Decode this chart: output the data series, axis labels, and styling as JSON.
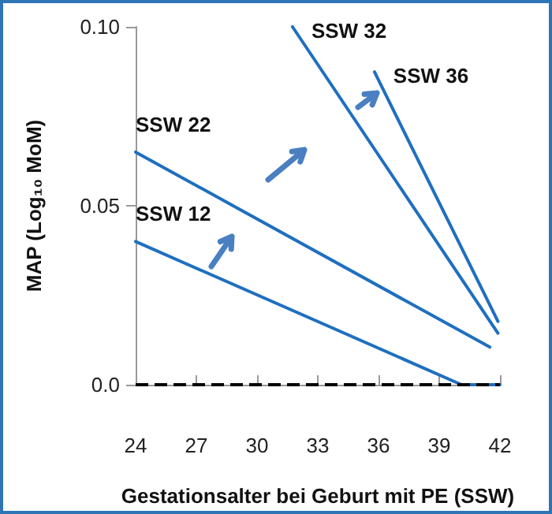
{
  "chart_data": {
    "type": "line",
    "xlabel": "Gestationsalter bei Geburt mit PE (SSW)",
    "ylabel": "MAP (Log₁₀ MoM)",
    "xlim": [
      24,
      42
    ],
    "xticks": [
      24,
      27,
      30,
      33,
      36,
      39,
      42
    ],
    "ylim": [
      0,
      0.1
    ],
    "yticks": [
      {
        "value": 0,
        "label": "0.0"
      },
      {
        "value": 0.05,
        "label": "0.05"
      },
      {
        "value": 0.1,
        "label": "0.10"
      }
    ],
    "grid": false,
    "legend": false,
    "marker": "none",
    "line_style": "solid",
    "ref_lines": [
      {
        "axis": "y",
        "value": 0,
        "color": "#000000",
        "line_style": "dashed"
      }
    ],
    "series": [
      {
        "name": "SSW 12",
        "color": "#1f6fbf",
        "x": [
          24,
          40.1,
          42
        ],
        "values": [
          0.04,
          0,
          0
        ]
      },
      {
        "name": "SSW 22",
        "color": "#1f6fbf",
        "x": [
          24,
          41.5
        ],
        "values": [
          0.065,
          0.0105
        ]
      },
      {
        "name": "SSW 32",
        "color": "#1f6fbf",
        "x": [
          31.75,
          41.9
        ],
        "values": [
          0.1,
          0.0144
        ]
      },
      {
        "name": "SSW 36",
        "color": "#1f6fbf",
        "x": [
          35.8,
          41.9
        ],
        "values": [
          0.0874,
          0.0177
        ]
      }
    ]
  }
}
